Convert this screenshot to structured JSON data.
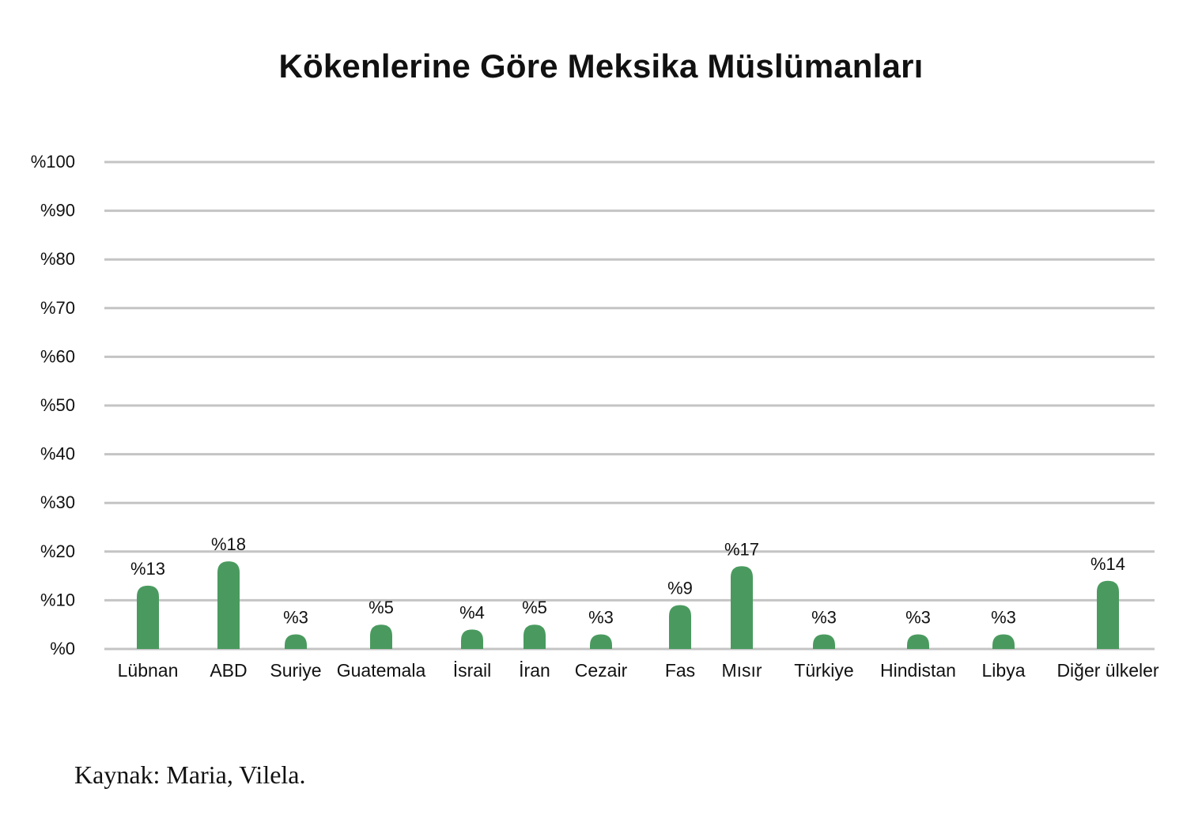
{
  "chart_data": {
    "type": "bar",
    "title": "Kökenlerine Göre Meksika Müslümanları",
    "categories": [
      "Lübnan",
      "ABD",
      "Suriye",
      "Guatemala",
      "İsrail",
      "İran",
      "Cezair",
      "Fas",
      "Mısır",
      "Türkiye",
      "Hindistan",
      "Libya",
      "Diğer ülkeler"
    ],
    "values": [
      13,
      18,
      3,
      5,
      4,
      5,
      3,
      9,
      17,
      3,
      3,
      3,
      14
    ],
    "data_labels": [
      "%13",
      "%18",
      "%3",
      "%5",
      "%4",
      "%5",
      "%3",
      "%9",
      "%17",
      "%3",
      "%3",
      "%3",
      "%14"
    ],
    "yticks": [
      "%0",
      "%10",
      "%20",
      "%30",
      "%40",
      "%50",
      "%60",
      "%70",
      "%80",
      "%90",
      "%100"
    ],
    "ylim": [
      0,
      100
    ],
    "xlabel": "",
    "ylabel": "",
    "grid": true,
    "bar_color": "#4a9a5f",
    "grid_color": "#c4c4c4"
  },
  "source": "Kaynak: Maria, Vilela."
}
